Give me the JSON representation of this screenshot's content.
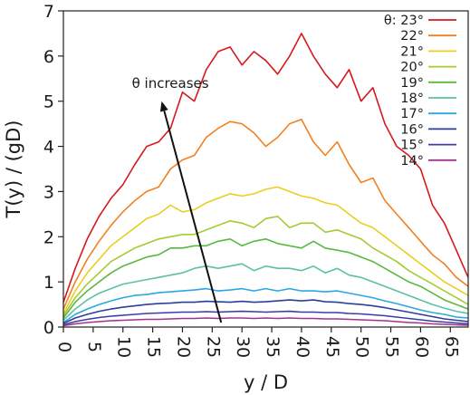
{
  "chart_data": {
    "type": "line",
    "xlabel": "y / D",
    "ylabel": "T(y) / (gD)",
    "xlim": [
      0,
      68
    ],
    "ylim": [
      0,
      7
    ],
    "xticks": [
      0,
      5,
      10,
      15,
      20,
      25,
      30,
      35,
      40,
      45,
      50,
      55,
      60,
      65
    ],
    "xtick_labels": [
      "0",
      "5",
      "10",
      "15",
      "20",
      "25",
      "30",
      "35",
      "40",
      "45",
      "50",
      "55",
      "60",
      "65"
    ],
    "yticks": [
      0,
      1,
      2,
      3,
      4,
      5,
      6,
      7
    ],
    "ytick_labels": [
      "0",
      "1",
      "2",
      "3",
      "4",
      "5",
      "6",
      "7"
    ],
    "grid": false,
    "legend_position": "top-right",
    "annotation": {
      "text": "θ increases",
      "arrow_from": [
        26.5,
        0.1
      ],
      "arrow_to": [
        16.5,
        5.0
      ],
      "text_at": [
        11.5,
        5.3
      ]
    },
    "x": [
      0,
      2,
      4,
      6,
      8,
      10,
      12,
      14,
      16,
      18,
      20,
      22,
      24,
      26,
      28,
      30,
      32,
      34,
      36,
      38,
      40,
      42,
      44,
      46,
      48,
      50,
      52,
      54,
      56,
      58,
      60,
      62,
      64,
      66,
      68
    ],
    "series": [
      {
        "name": "θ: 23°",
        "color": "#d7191c",
        "values": [
          0.55,
          1.3,
          1.95,
          2.45,
          2.85,
          3.15,
          3.6,
          4.0,
          4.1,
          4.4,
          5.2,
          5.0,
          5.7,
          6.1,
          6.2,
          5.8,
          6.1,
          5.9,
          5.6,
          6.0,
          6.5,
          6.0,
          5.6,
          5.3,
          5.7,
          5.0,
          5.3,
          4.5,
          4.0,
          3.8,
          3.5,
          2.7,
          2.3,
          1.7,
          1.1
        ]
      },
      {
        "name": "22°",
        "color": "#f28020",
        "values": [
          0.4,
          1.0,
          1.5,
          1.9,
          2.25,
          2.55,
          2.8,
          3.0,
          3.1,
          3.5,
          3.7,
          3.8,
          4.2,
          4.4,
          4.55,
          4.5,
          4.3,
          4.0,
          4.2,
          4.5,
          4.6,
          4.1,
          3.8,
          4.1,
          3.6,
          3.2,
          3.3,
          2.8,
          2.5,
          2.2,
          1.9,
          1.6,
          1.4,
          1.1,
          0.9
        ]
      },
      {
        "name": "21°",
        "color": "#e8d020",
        "values": [
          0.3,
          0.8,
          1.2,
          1.5,
          1.8,
          2.0,
          2.2,
          2.4,
          2.5,
          2.7,
          2.55,
          2.6,
          2.75,
          2.85,
          2.95,
          2.9,
          2.95,
          3.05,
          3.1,
          3.0,
          2.9,
          2.85,
          2.75,
          2.7,
          2.5,
          2.3,
          2.2,
          2.0,
          1.8,
          1.6,
          1.4,
          1.2,
          1.0,
          0.85,
          0.7
        ]
      },
      {
        "name": "20°",
        "color": "#a3cc33",
        "values": [
          0.25,
          0.65,
          0.95,
          1.2,
          1.45,
          1.6,
          1.75,
          1.85,
          1.95,
          2.0,
          2.05,
          2.05,
          2.15,
          2.25,
          2.35,
          2.3,
          2.2,
          2.4,
          2.45,
          2.2,
          2.3,
          2.3,
          2.1,
          2.15,
          2.05,
          1.95,
          1.75,
          1.6,
          1.45,
          1.25,
          1.1,
          0.95,
          0.8,
          0.65,
          0.5
        ]
      },
      {
        "name": "19°",
        "color": "#5bb83f",
        "values": [
          0.2,
          0.55,
          0.8,
          1.0,
          1.2,
          1.35,
          1.45,
          1.55,
          1.6,
          1.75,
          1.75,
          1.8,
          1.8,
          1.9,
          1.95,
          1.8,
          1.9,
          1.95,
          1.85,
          1.8,
          1.75,
          1.9,
          1.75,
          1.7,
          1.65,
          1.55,
          1.45,
          1.3,
          1.15,
          1.0,
          0.9,
          0.75,
          0.6,
          0.5,
          0.4
        ]
      },
      {
        "name": "18°",
        "color": "#5cc0a8",
        "values": [
          0.15,
          0.4,
          0.6,
          0.75,
          0.85,
          0.95,
          1.0,
          1.05,
          1.1,
          1.15,
          1.2,
          1.3,
          1.35,
          1.3,
          1.35,
          1.4,
          1.25,
          1.35,
          1.3,
          1.3,
          1.25,
          1.35,
          1.2,
          1.3,
          1.15,
          1.1,
          1.0,
          0.9,
          0.8,
          0.7,
          0.6,
          0.5,
          0.42,
          0.35,
          0.3
        ]
      },
      {
        "name": "17°",
        "color": "#2aa8df",
        "values": [
          0.1,
          0.28,
          0.4,
          0.5,
          0.58,
          0.65,
          0.7,
          0.72,
          0.76,
          0.78,
          0.8,
          0.82,
          0.85,
          0.8,
          0.82,
          0.85,
          0.8,
          0.85,
          0.8,
          0.85,
          0.8,
          0.8,
          0.78,
          0.8,
          0.75,
          0.7,
          0.65,
          0.58,
          0.52,
          0.45,
          0.38,
          0.32,
          0.28,
          0.22,
          0.2
        ]
      },
      {
        "name": "16°",
        "color": "#2d3e9a",
        "values": [
          0.08,
          0.2,
          0.28,
          0.35,
          0.4,
          0.44,
          0.47,
          0.5,
          0.52,
          0.53,
          0.55,
          0.55,
          0.57,
          0.56,
          0.55,
          0.57,
          0.55,
          0.56,
          0.58,
          0.6,
          0.58,
          0.6,
          0.56,
          0.55,
          0.52,
          0.5,
          0.47,
          0.43,
          0.38,
          0.33,
          0.28,
          0.23,
          0.18,
          0.15,
          0.12
        ]
      },
      {
        "name": "15°",
        "color": "#3e3aa8",
        "values": [
          0.05,
          0.12,
          0.17,
          0.21,
          0.24,
          0.26,
          0.28,
          0.3,
          0.31,
          0.32,
          0.33,
          0.33,
          0.34,
          0.33,
          0.34,
          0.35,
          0.34,
          0.33,
          0.34,
          0.35,
          0.33,
          0.33,
          0.32,
          0.32,
          0.3,
          0.29,
          0.27,
          0.25,
          0.22,
          0.19,
          0.16,
          0.13,
          0.11,
          0.09,
          0.07
        ]
      },
      {
        "name": "14°",
        "color": "#a3348a",
        "values": [
          0.03,
          0.07,
          0.1,
          0.12,
          0.14,
          0.15,
          0.16,
          0.17,
          0.17,
          0.18,
          0.19,
          0.19,
          0.2,
          0.19,
          0.2,
          0.2,
          0.19,
          0.2,
          0.19,
          0.2,
          0.19,
          0.19,
          0.18,
          0.18,
          0.17,
          0.16,
          0.15,
          0.14,
          0.12,
          0.1,
          0.09,
          0.07,
          0.06,
          0.05,
          0.04
        ]
      }
    ]
  }
}
